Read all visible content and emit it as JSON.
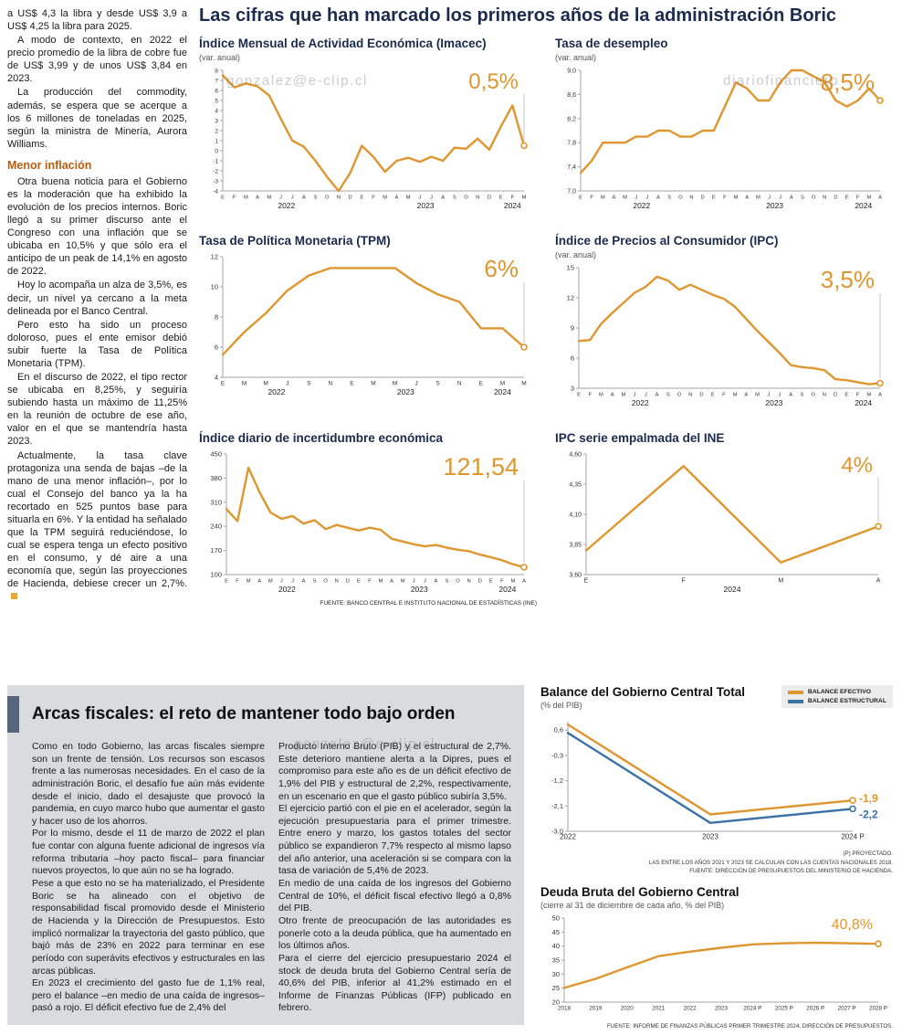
{
  "watermarks": {
    "top_left": "gonzalez@e-clip.cl",
    "top_right": "diariofinanciero",
    "bottom": "gonzalez@e-clip.cl"
  },
  "left_article": {
    "subhead": "Menor inflación",
    "paragraphs": [
      "a US$ 4,3 la libra y desde US$ 3,9 a US$ 4,25 la libra para 2025.",
      "A modo de contexto, en 2022 el precio promedio de la libra de cobre fue de US$ 3,99 y de unos US$ 3,84 en 2023.",
      "La producción del commodity, además, se espera que se acerque a los 6 millones de toneladas en 2025, según la ministra de Minería, Aurora Williams.",
      "Otra buena noticia para el Gobierno es la moderación que ha exhibido la evolución de los precios internos. Boric llegó a su primer discurso ante el Congreso con una inflación que se ubicaba en 10,5% y que sólo era el anticipo de un peak de 14,1% en agosto de 2022.",
      "Hoy lo acompaña un alza de 3,5%, es decir, un nivel ya cercano a la meta delineada por el Banco Central.",
      "Pero esto ha sido un proceso doloroso, pues el ente emisor debió subir fuerte la Tasa de Política Monetaria (TPM).",
      "En el discurso de 2022, el tipo rector se ubicaba en 8,25%, y seguiría subiendo hasta un máximo de 11,25% en la reunión de octubre de ese año, valor en el que se mantendría hasta 2023.",
      "Actualmente, la tasa clave protagoniza una senda de bajas –de la mano de una menor inflación–, por lo cual el Consejo del banco ya la ha recortado en 525 puntos base para situarla en 6%. Y la entidad ha señalado que la TPM seguirá reduciéndose, lo cual se espera tenga un efecto positivo en el consumo, y dé aire a una economía que, según las proyecciones de Hacienda, debiese crecer un 2,7%."
    ]
  },
  "main": {
    "title": "Las cifras que han marcado los primeros años de la administración Boric",
    "source_note": "FUENTE: BANCO CENTRAL E INSTITUTO NACIONAL DE ESTADÍSTICAS (INE)"
  },
  "bottom": {
    "title": "Arcas fiscales: el reto de mantener todo bajo orden",
    "col1": [
      "Como en todo Gobierno, las arcas fiscales siempre son un frente de tensión. Los recursos son escasos frente a las numerosas necesidades. En el caso de la administración Boric, el desafío fue aún más evidente desde el inicio, dado el desajuste que provocó la pandemia, en cuyo marco hubo que aumentar el gasto y hacer uso de los ahorros.",
      "Por lo mismo, desde el 11 de marzo de 2022 el plan fue contar con alguna fuente adicional de ingresos vía reforma tributaria –hoy pacto fiscal– para financiar nuevos proyectos, lo que aún no se ha logrado.",
      "Pese a que esto no se ha materializado, el Presidente Boric se ha alineado con el objetivo de responsabilidad fiscal promovido desde el Ministerio de Hacienda y la Dirección de Presupuestos. Esto implicó normalizar la trayectoria del gasto público, que bajó más de 23% en 2022 para terminar en ese período con superávits efectivos y estructurales en las arcas públicas.",
      "En 2023 el crecimiento del gasto fue de 1,1% real, pero el balance –en medio de una caída de ingresos– pasó a rojo. El déficit efectivo fue de 2,4% del"
    ],
    "col2": [
      "Producto Interno Bruto (PIB) y el estructural de 2,7%. Este deterioro mantiene alerta a la Dipres, pues el compromiso para este año es de un déficit efectivo de 1,9% del PIB y estructural de 2,2%, respectivamente, en un escenario en que el gasto público subiría 3,5%.",
      "El ejercicio partió con el pie en el acelerador, según la ejecución presupuestaria para el primer trimestre. Entre enero y marzo, los gastos totales del sector público se expandieron 7,7% respecto al mismo lapso del año anterior, una aceleración si se compara con la tasa de variación de 5,4% de 2023.",
      "En medio de una caída de los ingresos del Gobierno Central de 10%, el déficit fiscal efectivo llegó a 0,8% del PIB.",
      "Otro frente de preocupación de las autoridades es ponerle coto a la deuda pública, que ha aumentado en los últimos años.",
      "Para el cierre del ejercicio presupuestario 2024 el stock de deuda bruta del Gobierno Central sería de 40,6% del PIB, inferior al 41,2% estimado en el Informe de Finanzas Públicas (IFP) publicado en febrero."
    ]
  },
  "colors": {
    "orange": "#E0962F",
    "blue": "#3A72A8",
    "navy": "#1B2B4E",
    "panel_gray": "#D9DBDE",
    "accent_bar": "#55657E"
  },
  "chart_data": [
    {
      "id": "imacec",
      "type": "line",
      "title": "Índice Mensual de Actividad Económica (Imacec)",
      "subtitle": "(var. anual)",
      "big_label": "0,5%",
      "big_font": 24,
      "x_font": 5.8,
      "y_font": 6.5,
      "margins": {
        "l": 26,
        "r": 14,
        "t": 6,
        "b": 26
      },
      "x_labels": [
        "E",
        "F",
        "M",
        "A",
        "M",
        "J",
        "J",
        "A",
        "S",
        "O",
        "N",
        "D",
        "E",
        "F",
        "M",
        "A",
        "M",
        "J",
        "J",
        "A",
        "S",
        "O",
        "N",
        "D",
        "E",
        "F",
        "M"
      ],
      "year_spans": [
        {
          "label": "2022",
          "from": 0,
          "to": 11
        },
        {
          "label": "2023",
          "from": 12,
          "to": 23
        },
        {
          "label": "2024",
          "from": 24,
          "to": 26
        }
      ],
      "values": [
        7.5,
        6.3,
        6.7,
        6.4,
        5.5,
        3.2,
        1.0,
        0.4,
        -1.0,
        -2.6,
        -4.0,
        -2.2,
        0.5,
        -0.6,
        -2.1,
        -1.0,
        -0.7,
        -1.1,
        -0.6,
        -1.0,
        0.3,
        0.2,
        1.2,
        0.1,
        2.4,
        4.5,
        0.5
      ],
      "ylim": [
        -4,
        8
      ],
      "yticks": [
        {
          "v": 8,
          "label": "8"
        },
        {
          "v": 7,
          "label": "7"
        },
        {
          "v": 6,
          "label": "6"
        },
        {
          "v": 5,
          "label": "5"
        },
        {
          "v": 4,
          "label": "4"
        },
        {
          "v": 3,
          "label": "3"
        },
        {
          "v": 2,
          "label": "2"
        },
        {
          "v": 1,
          "label": "1"
        },
        {
          "v": 0,
          "label": "0"
        },
        {
          "v": -1,
          "label": "-1"
        },
        {
          "v": -2,
          "label": "-2"
        },
        {
          "v": -3,
          "label": "-3"
        },
        {
          "v": -4,
          "label": "-4"
        }
      ]
    },
    {
      "id": "desempleo",
      "type": "line",
      "title": "Tasa de desempleo",
      "subtitle": "(var. anual)",
      "big_label": "8,5%",
      "big_font": 26,
      "x_font": 5.8,
      "y_font": 7,
      "margins": {
        "l": 28,
        "r": 14,
        "t": 6,
        "b": 26
      },
      "x_labels": [
        "E",
        "F",
        "M",
        "A",
        "M",
        "J",
        "J",
        "A",
        "S",
        "O",
        "N",
        "D",
        "E",
        "F",
        "M",
        "A",
        "M",
        "J",
        "J",
        "A",
        "S",
        "O",
        "N",
        "D",
        "E",
        "F",
        "M",
        "A"
      ],
      "year_spans": [
        {
          "label": "2022",
          "from": 0,
          "to": 11
        },
        {
          "label": "2023",
          "from": 12,
          "to": 23
        },
        {
          "label": "2024",
          "from": 24,
          "to": 27
        }
      ],
      "values": [
        7.3,
        7.5,
        7.8,
        7.8,
        7.8,
        7.9,
        7.9,
        8.0,
        8.0,
        7.9,
        7.9,
        8.0,
        8.0,
        8.4,
        8.8,
        8.7,
        8.5,
        8.5,
        8.8,
        9.0,
        9.0,
        8.9,
        8.8,
        8.5,
        8.4,
        8.5,
        8.7,
        8.5
      ],
      "ylim": [
        7.0,
        9.0
      ],
      "yticks": [
        {
          "v": 9.0,
          "label": "9,0"
        },
        {
          "v": 8.6,
          "label": "8,6"
        },
        {
          "v": 8.2,
          "label": "8,2"
        },
        {
          "v": 7.8,
          "label": "7,8"
        },
        {
          "v": 7.4,
          "label": "7,4"
        },
        {
          "v": 7.0,
          "label": "7,0"
        }
      ]
    },
    {
      "id": "tpm",
      "type": "line",
      "title": "Tasa de Política Monetaria (TPM)",
      "subtitle": "",
      "big_label": "6%",
      "big_font": 26,
      "x_font": 6.5,
      "y_font": 7.5,
      "margins": {
        "l": 26,
        "r": 14,
        "t": 6,
        "b": 26
      },
      "x_labels": [
        "E",
        "M",
        "M",
        "J",
        "S",
        "N",
        "E",
        "M",
        "M",
        "J",
        "S",
        "N",
        "E",
        "M",
        "M"
      ],
      "year_spans": [
        {
          "label": "2022",
          "from": 0,
          "to": 5
        },
        {
          "label": "2023",
          "from": 6,
          "to": 11
        },
        {
          "label": "2024",
          "from": 12,
          "to": 14
        }
      ],
      "values": [
        5.5,
        7.0,
        8.25,
        9.75,
        10.75,
        11.25,
        11.25,
        11.25,
        11.25,
        10.25,
        9.5,
        9.0,
        7.25,
        7.25,
        6.0
      ],
      "ylim": [
        4,
        12
      ],
      "yticks": [
        {
          "v": 12,
          "label": "12"
        },
        {
          "v": 10,
          "label": "10"
        },
        {
          "v": 8,
          "label": "8"
        },
        {
          "v": 6,
          "label": "6"
        },
        {
          "v": 4,
          "label": "4"
        }
      ]
    },
    {
      "id": "ipc",
      "type": "line",
      "title": "Índice de Precios al Consumidor (IPC)",
      "subtitle": "(var. anual)",
      "big_label": "3,5%",
      "big_font": 26,
      "x_font": 5.8,
      "y_font": 7.5,
      "margins": {
        "l": 26,
        "r": 14,
        "t": 6,
        "b": 26
      },
      "x_labels": [
        "E",
        "F",
        "M",
        "A",
        "M",
        "J",
        "J",
        "A",
        "S",
        "O",
        "N",
        "D",
        "E",
        "F",
        "M",
        "A",
        "M",
        "J",
        "J",
        "A",
        "S",
        "O",
        "N",
        "D",
        "E",
        "F",
        "M",
        "A"
      ],
      "year_spans": [
        {
          "label": "2022",
          "from": 0,
          "to": 11
        },
        {
          "label": "2023",
          "from": 12,
          "to": 23
        },
        {
          "label": "2024",
          "from": 24,
          "to": 27
        }
      ],
      "values": [
        7.7,
        7.8,
        9.4,
        10.5,
        11.5,
        12.5,
        13.1,
        14.1,
        13.7,
        12.8,
        13.3,
        12.8,
        12.3,
        11.9,
        11.1,
        9.9,
        8.7,
        7.6,
        6.5,
        5.3,
        5.1,
        5.0,
        4.8,
        3.9,
        3.8,
        3.6,
        3.4,
        3.5
      ],
      "ylim": [
        3,
        15
      ],
      "yticks": [
        {
          "v": 15,
          "label": "15"
        },
        {
          "v": 12,
          "label": "12"
        },
        {
          "v": 9,
          "label": "9"
        },
        {
          "v": 6,
          "label": "6"
        },
        {
          "v": 3,
          "label": "3"
        }
      ]
    },
    {
      "id": "incertidumbre",
      "type": "line",
      "title": "Índice diario de incertidumbre económica",
      "subtitle": "",
      "big_label": "121,54",
      "big_font": 27,
      "x_font": 5.8,
      "y_font": 7.5,
      "margins": {
        "l": 30,
        "r": 14,
        "t": 6,
        "b": 26
      },
      "x_labels": [
        "E",
        "F",
        "M",
        "A",
        "M",
        "J",
        "J",
        "A",
        "S",
        "O",
        "N",
        "D",
        "E",
        "F",
        "M",
        "A",
        "M",
        "J",
        "J",
        "A",
        "S",
        "O",
        "N",
        "D",
        "E",
        "F",
        "M",
        "A"
      ],
      "year_spans": [
        {
          "label": "2022",
          "from": 0,
          "to": 11
        },
        {
          "label": "2023",
          "from": 12,
          "to": 23
        },
        {
          "label": "2024",
          "from": 24,
          "to": 27
        }
      ],
      "values": [
        290,
        255,
        410,
        340,
        280,
        262,
        270,
        248,
        258,
        232,
        244,
        236,
        228,
        236,
        230,
        204,
        196,
        188,
        182,
        186,
        178,
        172,
        168,
        158,
        150,
        142,
        130,
        121.54
      ],
      "ylim": [
        100,
        450
      ],
      "yticks": [
        {
          "v": 450,
          "label": "450"
        },
        {
          "v": 380,
          "label": "380"
        },
        {
          "v": 310,
          "label": "310"
        },
        {
          "v": 240,
          "label": "240"
        },
        {
          "v": 170,
          "label": "170"
        },
        {
          "v": 100,
          "label": "100"
        }
      ]
    },
    {
      "id": "ipc-empalmada",
      "type": "line",
      "title": "IPC serie empalmada del INE",
      "subtitle": "",
      "big_label": "4%",
      "big_font": 24,
      "x_font": 7,
      "y_font": 7,
      "margins": {
        "l": 34,
        "r": 16,
        "t": 6,
        "b": 26
      },
      "x_labels": [
        "E",
        "F",
        "M",
        "A"
      ],
      "year_spans": [
        {
          "label": "2024",
          "from": 0,
          "to": 3
        }
      ],
      "values": [
        3.8,
        4.5,
        3.7,
        4.0
      ],
      "ylim": [
        3.6,
        4.6
      ],
      "yticks": [
        {
          "v": 4.6,
          "label": "4,60"
        },
        {
          "v": 4.35,
          "label": "4,35"
        },
        {
          "v": 4.1,
          "label": "4,10"
        },
        {
          "v": 3.85,
          "label": "3,85"
        },
        {
          "v": 3.6,
          "label": "3,60"
        }
      ]
    },
    {
      "id": "balance",
      "type": "line",
      "title": "Balance del Gobierno Central Total",
      "subtitle": "(% del PIB)",
      "x_font": 8,
      "y_font": 7.5,
      "margins": {
        "l": 30,
        "r": 44,
        "t": 10,
        "b": 18
      },
      "x_labels": [
        "2022",
        "2023",
        "2024 P"
      ],
      "series": [
        {
          "name": "BALANCE EFECTIVO",
          "color": "orange",
          "values": [
            0.8,
            -2.4,
            -1.9
          ],
          "end_label": "-1,9",
          "end_label_dy": -1
        },
        {
          "name": "BALANCE ESTRUCTURAL",
          "color": "blue",
          "values": [
            0.5,
            -2.7,
            -2.2
          ],
          "end_label": "-2,2",
          "end_label_dy": 7
        }
      ],
      "ylim": [
        -3.0,
        0.9
      ],
      "yticks": [
        {
          "v": 0.6,
          "label": "0,6"
        },
        {
          "v": -0.3,
          "label": "-0,3"
        },
        {
          "v": -1.2,
          "label": "-1,2"
        },
        {
          "v": -2.1,
          "label": "-2,1"
        },
        {
          "v": -3.0,
          "label": "-3,0"
        }
      ],
      "notes": [
        "(P) PROYECTADO.",
        "LAS ENTRE LOS AÑOS 2021 Y 2023 SE CALCULAN CON LAS CUENTAS NACIONALES 2018.",
        "FUENTE: DIRECCIÓN DE PRESUPUESTOS DEL MINISTERIO DE HACIENDA."
      ]
    },
    {
      "id": "deuda",
      "type": "line",
      "title": "Deuda Bruta del Gobierno Central",
      "subtitle": "(cierre al 31 de diciembre de cada año, % del PIB)",
      "big_label": "40,8%",
      "big_font": 16,
      "drop": false,
      "x_font": 6.3,
      "y_font": 7.5,
      "margins": {
        "l": 26,
        "r": 16,
        "t": 6,
        "b": 20
      },
      "x_labels": [
        "2018",
        "2019",
        "2020",
        "2021",
        "2022",
        "2023",
        "2024 P",
        "2025 P",
        "2026 P",
        "2027 P",
        "2028 P"
      ],
      "values": [
        25.1,
        28.3,
        32.4,
        36.4,
        38.0,
        39.4,
        40.6,
        41.0,
        41.2,
        41.0,
        40.8
      ],
      "ylim": [
        20,
        50
      ],
      "yticks": [
        {
          "v": 50,
          "label": "50"
        },
        {
          "v": 45,
          "label": "45"
        },
        {
          "v": 40,
          "label": "40"
        },
        {
          "v": 35,
          "label": "35"
        },
        {
          "v": 30,
          "label": "30"
        },
        {
          "v": 25,
          "label": "25"
        },
        {
          "v": 20,
          "label": "20"
        }
      ],
      "source": "FUENTE: INFORME DE FINANZAS PÚBLICAS PRIMER TRIMESTRE 2024, DIRECCIÓN DE PRESUPUESTOS."
    }
  ]
}
